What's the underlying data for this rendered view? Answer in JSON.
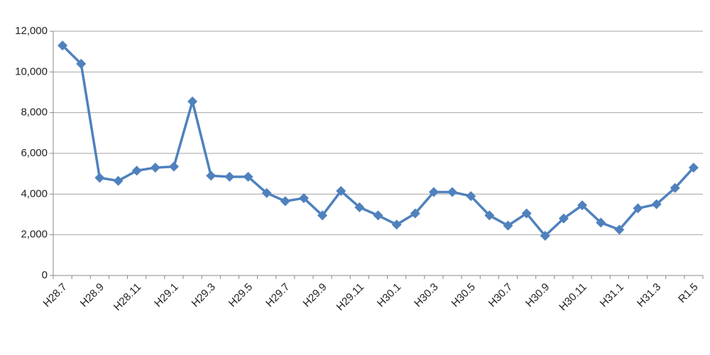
{
  "chart_data": {
    "type": "line",
    "categories": [
      "H28.7",
      null,
      "H28.9",
      null,
      "H28.11",
      null,
      "H29.1",
      null,
      "H29.3",
      null,
      "H29.5",
      null,
      "H29.7",
      null,
      "H29.9",
      null,
      "H29.11",
      null,
      "H30.1",
      null,
      "H30.3",
      null,
      "H30.5",
      null,
      "H30.7",
      null,
      "H30.9",
      null,
      "H30.11",
      null,
      "H31.1",
      null,
      "H31.3",
      null,
      "R1.5"
    ],
    "values": [
      11300,
      10400,
      4800,
      4650,
      5150,
      5300,
      5350,
      8550,
      4900,
      4850,
      4850,
      4050,
      3650,
      3800,
      2950,
      4150,
      3350,
      2950,
      2500,
      3050,
      4100,
      4100,
      3900,
      2950,
      2450,
      3050,
      1950,
      2800,
      3450,
      2600,
      2250,
      3300,
      3500,
      4300,
      5300
    ],
    "color": "#4f81bd",
    "ylim": [
      0,
      12000
    ],
    "yticks": [
      0,
      {
        "value": 2000,
        "label": "2,000"
      },
      {
        "value": 4000,
        "label": "4,000"
      },
      {
        "value": 6000,
        "label": "6,000"
      },
      {
        "value": 8000,
        "label": "8,000"
      },
      {
        "value": 10000,
        "label": "10,000"
      },
      {
        "value": 12000,
        "label": "12,000"
      }
    ],
    "grid": true
  }
}
